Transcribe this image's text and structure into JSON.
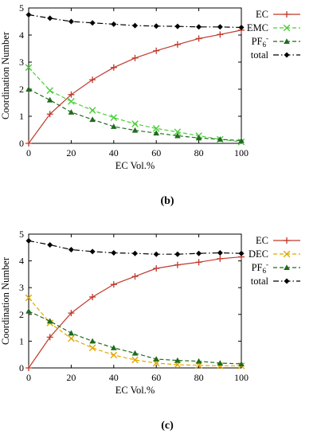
{
  "chart_data": [
    {
      "type": "line",
      "panel_label": "(b)",
      "xlabel": "EC  Vol.%",
      "ylabel": "Coordination Number",
      "xlim": [
        0,
        100
      ],
      "ylim": [
        0,
        5
      ],
      "xticks": [
        "0",
        "20",
        "40",
        "60",
        "80",
        "100"
      ],
      "yticks": [
        "0",
        "1",
        "2",
        "3",
        "4",
        "5"
      ],
      "legend_position": "right",
      "x": [
        0,
        10,
        20,
        30,
        40,
        50,
        60,
        70,
        80,
        90,
        100
      ],
      "series": [
        {
          "name": "EC",
          "color": "#c0392b",
          "marker": "plus",
          "dash": "solid",
          "values": [
            0.0,
            1.08,
            1.8,
            2.35,
            2.8,
            3.15,
            3.42,
            3.65,
            3.87,
            4.02,
            4.18
          ]
        },
        {
          "name": "EMC",
          "color": "#4dcc3a",
          "marker": "cross",
          "dash": "dashed",
          "values": [
            2.8,
            1.95,
            1.55,
            1.22,
            0.95,
            0.72,
            0.55,
            0.42,
            0.28,
            0.15,
            0.05
          ]
        },
        {
          "name": "PF",
          "sub": "6",
          "sup": "-",
          "color": "#1e6b1e",
          "marker": "triangle",
          "dash": "dashed",
          "values": [
            2.0,
            1.6,
            1.15,
            0.88,
            0.62,
            0.48,
            0.38,
            0.28,
            0.2,
            0.15,
            0.1
          ]
        },
        {
          "name": "total",
          "color": "#000000",
          "marker": "diamond",
          "dash": "dashdot",
          "values": [
            4.75,
            4.62,
            4.5,
            4.45,
            4.4,
            4.35,
            4.33,
            4.32,
            4.3,
            4.3,
            4.28
          ]
        }
      ]
    },
    {
      "type": "line",
      "panel_label": "(c)",
      "xlabel": "EC  Vol.%",
      "ylabel": "Coordination Number",
      "xlim": [
        0,
        100
      ],
      "ylim": [
        0,
        5
      ],
      "xticks": [
        "0",
        "20",
        "40",
        "60",
        "80",
        "100"
      ],
      "yticks": [
        "0",
        "1",
        "2",
        "3",
        "4",
        "5"
      ],
      "legend_position": "right",
      "x": [
        0,
        10,
        20,
        30,
        40,
        50,
        60,
        70,
        80,
        90,
        100
      ],
      "series": [
        {
          "name": "EC",
          "color": "#c0392b",
          "marker": "plus",
          "dash": "solid",
          "values": [
            0.0,
            1.15,
            2.05,
            2.65,
            3.12,
            3.42,
            3.72,
            3.85,
            3.95,
            4.08,
            4.15
          ]
        },
        {
          "name": "DEC",
          "color": "#e0a800",
          "marker": "cross",
          "dash": "dashed",
          "values": [
            2.62,
            1.68,
            1.1,
            0.75,
            0.48,
            0.3,
            0.18,
            0.12,
            0.1,
            0.08,
            0.08
          ]
        },
        {
          "name": "PF",
          "sub": "6",
          "sup": "-",
          "color": "#1e6b1e",
          "marker": "triangle",
          "dash": "dashed",
          "values": [
            2.12,
            1.75,
            1.3,
            1.0,
            0.75,
            0.55,
            0.33,
            0.28,
            0.25,
            0.18,
            0.15
          ]
        },
        {
          "name": "total",
          "color": "#000000",
          "marker": "diamond",
          "dash": "dashdot",
          "values": [
            4.75,
            4.6,
            4.42,
            4.35,
            4.3,
            4.28,
            4.25,
            4.25,
            4.28,
            4.3,
            4.28
          ]
        }
      ]
    }
  ]
}
